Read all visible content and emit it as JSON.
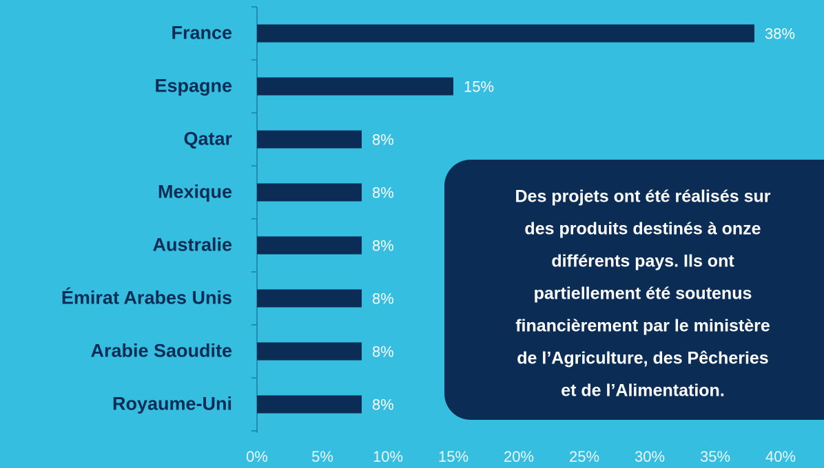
{
  "chart_data": {
    "type": "bar",
    "orientation": "horizontal",
    "categories": [
      "France",
      "Espagne",
      "Qatar",
      "Mexique",
      "Australie",
      "Émirat Arabes Unis",
      "Arabie Saoudite",
      "Royaume-Uni"
    ],
    "values": [
      38,
      15,
      8,
      8,
      8,
      8,
      8,
      8
    ],
    "value_labels": [
      "38%",
      "15%",
      "8%",
      "8%",
      "8%",
      "8%",
      "8%",
      "8%"
    ],
    "color": "#0b2d55",
    "xlim": [
      0,
      40
    ],
    "xticks": [
      {
        "value": 0,
        "label": "0%"
      },
      {
        "value": 5,
        "label": "5%"
      },
      {
        "value": 10,
        "label": "10%"
      },
      {
        "value": 15,
        "label": "15%"
      },
      {
        "value": 20,
        "label": "20%"
      },
      {
        "value": 25,
        "label": "25%"
      },
      {
        "value": 30,
        "label": "30%"
      },
      {
        "value": 35,
        "label": "35%"
      },
      {
        "value": 40,
        "label": "40%"
      }
    ],
    "grid": false,
    "annotation": [
      "Des projets ont été réalisés sur",
      "des produits destinés à onze",
      "différents pays. Ils ont",
      "partiellement été soutenus",
      "financièrement par le ministère",
      "de l’Agriculture, des Pêcheries",
      "et de l’Alimentation."
    ]
  }
}
